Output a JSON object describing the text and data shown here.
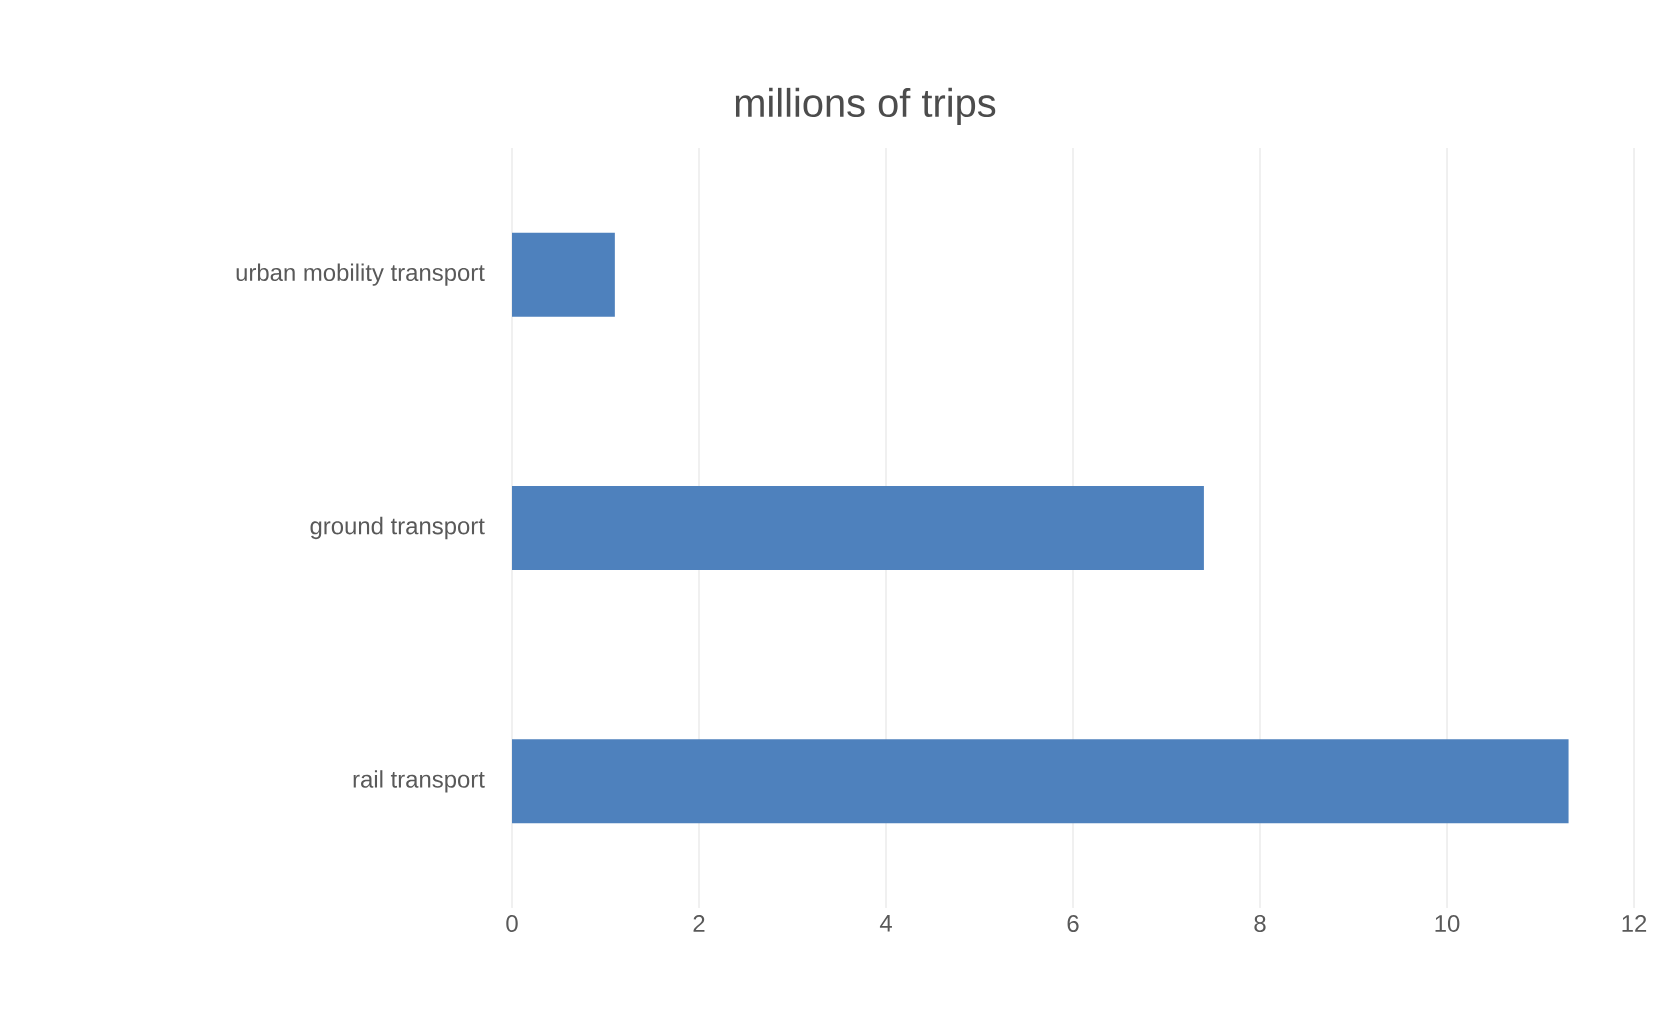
{
  "chart_data": {
    "type": "bar",
    "orientation": "horizontal",
    "title": "millions of trips",
    "categories": [
      "urban mobility transport",
      "ground transport",
      "rail transport"
    ],
    "values": [
      1.1,
      7.4,
      11.3
    ],
    "color": "#4e81bd",
    "xlim": [
      0,
      12
    ],
    "xticks": [
      0,
      2,
      4,
      6,
      8,
      10,
      12
    ],
    "grid": "x"
  }
}
